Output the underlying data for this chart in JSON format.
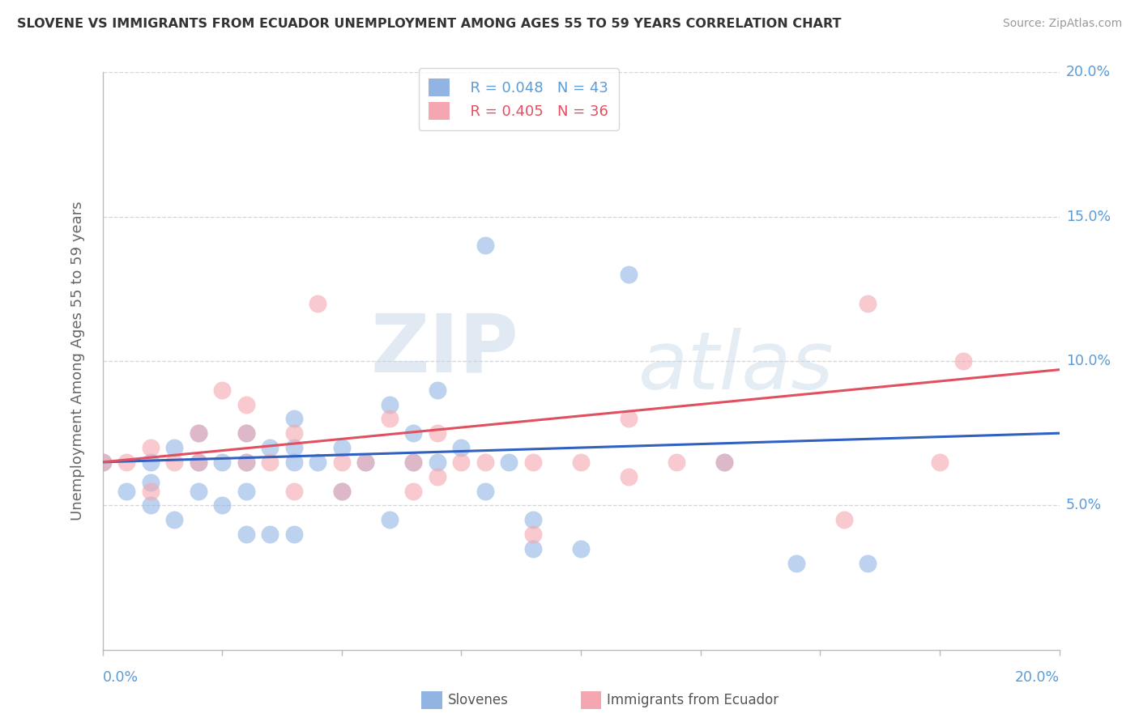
{
  "title": "SLOVENE VS IMMIGRANTS FROM ECUADOR UNEMPLOYMENT AMONG AGES 55 TO 59 YEARS CORRELATION CHART",
  "source": "Source: ZipAtlas.com",
  "ylabel": "Unemployment Among Ages 55 to 59 years",
  "xtick_left": "0.0%",
  "xtick_right": "20.0%",
  "xlim": [
    0.0,
    0.2
  ],
  "ylim": [
    0.0,
    0.2
  ],
  "yticks": [
    0.05,
    0.1,
    0.15,
    0.2
  ],
  "ytick_labels": [
    "5.0%",
    "10.0%",
    "15.0%",
    "20.0%"
  ],
  "legend_blue_r": "R = 0.048",
  "legend_blue_n": "N = 43",
  "legend_pink_r": "R = 0.405",
  "legend_pink_n": "N = 36",
  "blue_color": "#92b4e3",
  "pink_color": "#f4a7b0",
  "blue_line_color": "#3060c0",
  "pink_line_color": "#e05060",
  "blue_label": "Slovenes",
  "pink_label": "Immigrants from Ecuador",
  "blue_scatter_x": [
    0.0,
    0.005,
    0.01,
    0.01,
    0.01,
    0.015,
    0.015,
    0.02,
    0.02,
    0.02,
    0.025,
    0.025,
    0.03,
    0.03,
    0.03,
    0.03,
    0.035,
    0.035,
    0.04,
    0.04,
    0.04,
    0.04,
    0.045,
    0.05,
    0.05,
    0.055,
    0.06,
    0.06,
    0.065,
    0.065,
    0.07,
    0.07,
    0.075,
    0.08,
    0.08,
    0.085,
    0.09,
    0.09,
    0.1,
    0.11,
    0.13,
    0.145,
    0.16
  ],
  "blue_scatter_y": [
    0.065,
    0.055,
    0.065,
    0.058,
    0.05,
    0.07,
    0.045,
    0.075,
    0.065,
    0.055,
    0.065,
    0.05,
    0.075,
    0.065,
    0.055,
    0.04,
    0.07,
    0.04,
    0.08,
    0.07,
    0.065,
    0.04,
    0.065,
    0.07,
    0.055,
    0.065,
    0.085,
    0.045,
    0.075,
    0.065,
    0.09,
    0.065,
    0.07,
    0.14,
    0.055,
    0.065,
    0.045,
    0.035,
    0.035,
    0.13,
    0.065,
    0.03,
    0.03
  ],
  "pink_scatter_x": [
    0.0,
    0.005,
    0.01,
    0.01,
    0.015,
    0.02,
    0.02,
    0.025,
    0.03,
    0.03,
    0.03,
    0.035,
    0.04,
    0.04,
    0.045,
    0.05,
    0.05,
    0.055,
    0.06,
    0.065,
    0.065,
    0.07,
    0.07,
    0.075,
    0.08,
    0.09,
    0.09,
    0.1,
    0.11,
    0.11,
    0.12,
    0.13,
    0.155,
    0.16,
    0.175,
    0.18
  ],
  "pink_scatter_y": [
    0.065,
    0.065,
    0.07,
    0.055,
    0.065,
    0.075,
    0.065,
    0.09,
    0.085,
    0.075,
    0.065,
    0.065,
    0.075,
    0.055,
    0.12,
    0.065,
    0.055,
    0.065,
    0.08,
    0.065,
    0.055,
    0.075,
    0.06,
    0.065,
    0.065,
    0.065,
    0.04,
    0.065,
    0.08,
    0.06,
    0.065,
    0.065,
    0.045,
    0.12,
    0.065,
    0.1
  ],
  "blue_line_x": [
    0.0,
    0.2
  ],
  "blue_line_y": [
    0.065,
    0.075
  ],
  "pink_line_x": [
    0.0,
    0.2
  ],
  "pink_line_y": [
    0.065,
    0.097
  ],
  "watermark_zip": "ZIP",
  "watermark_atlas": "atlas",
  "bg_color": "#ffffff",
  "grid_color": "#d5d5d5",
  "axis_color": "#bbbbbb",
  "title_color": "#333333",
  "tick_label_color": "#5b9bd5",
  "ylabel_color": "#666666",
  "bottom_label_color": "#555555"
}
